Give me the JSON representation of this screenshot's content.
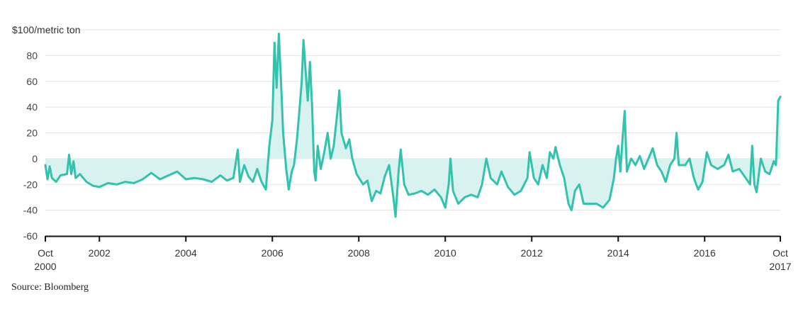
{
  "chart_data": {
    "type": "area",
    "unit_label": "$100/metric ton",
    "source": "Source: Bloomberg",
    "ylim": [
      -60,
      100
    ],
    "y_ticks": [
      {
        "value": 80,
        "label": "80"
      },
      {
        "value": 60,
        "label": "60"
      },
      {
        "value": 40,
        "label": "40"
      },
      {
        "value": 20,
        "label": "20"
      },
      {
        "value": 0,
        "label": "0"
      },
      {
        "value": -20,
        "label": "-20"
      },
      {
        "value": -40,
        "label": "-40"
      },
      {
        "value": -60,
        "label": "-60"
      }
    ],
    "xlim": [
      2000.75,
      2017.75
    ],
    "x_ticks": [
      {
        "value": 2000.75,
        "line1": "Oct",
        "line2": "2000"
      },
      {
        "value": 2002.0,
        "line1": "2002",
        "line2": ""
      },
      {
        "value": 2004.0,
        "line1": "2004",
        "line2": ""
      },
      {
        "value": 2006.0,
        "line1": "2006",
        "line2": ""
      },
      {
        "value": 2008.0,
        "line1": "2008",
        "line2": ""
      },
      {
        "value": 2010.0,
        "line1": "2010",
        "line2": ""
      },
      {
        "value": 2012.0,
        "line1": "2012",
        "line2": ""
      },
      {
        "value": 2014.0,
        "line1": "2014",
        "line2": ""
      },
      {
        "value": 2016.0,
        "line1": "2016",
        "line2": ""
      },
      {
        "value": 2017.75,
        "line1": "Oct",
        "line2": "2017"
      }
    ],
    "grid": true,
    "colors": {
      "line": "#33c2ad",
      "fill": "#d8f3ef",
      "grid": "#e3e3e3",
      "axis": "#111111"
    },
    "series": [
      {
        "points": [
          [
            2000.75,
            -5
          ],
          [
            2000.8,
            -16
          ],
          [
            2000.85,
            -6
          ],
          [
            2000.9,
            -15
          ],
          [
            2001.0,
            -18
          ],
          [
            2001.1,
            -13
          ],
          [
            2001.25,
            -12
          ],
          [
            2001.3,
            3
          ],
          [
            2001.35,
            -12
          ],
          [
            2001.4,
            -2
          ],
          [
            2001.45,
            -15
          ],
          [
            2001.55,
            -12
          ],
          [
            2001.7,
            -18
          ],
          [
            2001.85,
            -21
          ],
          [
            2002.0,
            -22
          ],
          [
            2002.2,
            -19
          ],
          [
            2002.4,
            -20
          ],
          [
            2002.6,
            -18
          ],
          [
            2002.8,
            -19
          ],
          [
            2003.0,
            -16
          ],
          [
            2003.2,
            -11
          ],
          [
            2003.4,
            -16
          ],
          [
            2003.6,
            -13
          ],
          [
            2003.8,
            -10
          ],
          [
            2004.0,
            -16
          ],
          [
            2004.2,
            -15
          ],
          [
            2004.4,
            -16
          ],
          [
            2004.6,
            -18
          ],
          [
            2004.8,
            -13
          ],
          [
            2004.95,
            -17
          ],
          [
            2005.1,
            -15
          ],
          [
            2005.2,
            7
          ],
          [
            2005.25,
            -18
          ],
          [
            2005.35,
            -5
          ],
          [
            2005.45,
            -14
          ],
          [
            2005.55,
            -18
          ],
          [
            2005.65,
            -8
          ],
          [
            2005.75,
            -18
          ],
          [
            2005.85,
            -24
          ],
          [
            2005.93,
            10
          ],
          [
            2006.0,
            30
          ],
          [
            2006.05,
            90
          ],
          [
            2006.1,
            55
          ],
          [
            2006.15,
            97
          ],
          [
            2006.2,
            60
          ],
          [
            2006.25,
            20
          ],
          [
            2006.32,
            -8
          ],
          [
            2006.38,
            -24
          ],
          [
            2006.45,
            -10
          ],
          [
            2006.5,
            -5
          ],
          [
            2006.57,
            15
          ],
          [
            2006.62,
            35
          ],
          [
            2006.68,
            60
          ],
          [
            2006.72,
            92
          ],
          [
            2006.77,
            68
          ],
          [
            2006.82,
            45
          ],
          [
            2006.87,
            75
          ],
          [
            2006.92,
            40
          ],
          [
            2006.97,
            -10
          ],
          [
            2007.0,
            -17
          ],
          [
            2007.05,
            10
          ],
          [
            2007.12,
            -8
          ],
          [
            2007.2,
            5
          ],
          [
            2007.28,
            20
          ],
          [
            2007.35,
            0
          ],
          [
            2007.42,
            10
          ],
          [
            2007.5,
            35
          ],
          [
            2007.55,
            53
          ],
          [
            2007.6,
            20
          ],
          [
            2007.7,
            8
          ],
          [
            2007.78,
            15
          ],
          [
            2007.85,
            0
          ],
          [
            2007.95,
            -12
          ],
          [
            2008.1,
            -20
          ],
          [
            2008.2,
            -17
          ],
          [
            2008.3,
            -33
          ],
          [
            2008.4,
            -25
          ],
          [
            2008.5,
            -27
          ],
          [
            2008.6,
            -14
          ],
          [
            2008.7,
            -5
          ],
          [
            2008.8,
            -30
          ],
          [
            2008.85,
            -45
          ],
          [
            2008.92,
            -10
          ],
          [
            2008.97,
            7
          ],
          [
            2009.05,
            -20
          ],
          [
            2009.15,
            -28
          ],
          [
            2009.3,
            -27
          ],
          [
            2009.45,
            -25
          ],
          [
            2009.6,
            -28
          ],
          [
            2009.75,
            -24
          ],
          [
            2009.9,
            -30
          ],
          [
            2010.0,
            -38
          ],
          [
            2010.08,
            -20
          ],
          [
            2010.12,
            0
          ],
          [
            2010.18,
            -25
          ],
          [
            2010.3,
            -35
          ],
          [
            2010.45,
            -30
          ],
          [
            2010.6,
            -28
          ],
          [
            2010.75,
            -30
          ],
          [
            2010.85,
            -20
          ],
          [
            2010.95,
            0
          ],
          [
            2011.05,
            -15
          ],
          [
            2011.2,
            -20
          ],
          [
            2011.3,
            -10
          ],
          [
            2011.45,
            -22
          ],
          [
            2011.6,
            -28
          ],
          [
            2011.75,
            -25
          ],
          [
            2011.9,
            -15
          ],
          [
            2011.95,
            5
          ],
          [
            2012.05,
            -15
          ],
          [
            2012.15,
            -20
          ],
          [
            2012.25,
            -5
          ],
          [
            2012.35,
            -15
          ],
          [
            2012.42,
            5
          ],
          [
            2012.5,
            0
          ],
          [
            2012.55,
            9
          ],
          [
            2012.65,
            -5
          ],
          [
            2012.75,
            -15
          ],
          [
            2012.85,
            -35
          ],
          [
            2012.92,
            -40
          ],
          [
            2013.0,
            -25
          ],
          [
            2013.1,
            -20
          ],
          [
            2013.2,
            -35
          ],
          [
            2013.35,
            -35
          ],
          [
            2013.5,
            -35
          ],
          [
            2013.65,
            -38
          ],
          [
            2013.8,
            -32
          ],
          [
            2013.9,
            -15
          ],
          [
            2013.95,
            0
          ],
          [
            2014.0,
            10
          ],
          [
            2014.05,
            -10
          ],
          [
            2014.1,
            15
          ],
          [
            2014.15,
            37
          ],
          [
            2014.2,
            -10
          ],
          [
            2014.3,
            0
          ],
          [
            2014.4,
            -5
          ],
          [
            2014.5,
            2
          ],
          [
            2014.6,
            -8
          ],
          [
            2014.7,
            0
          ],
          [
            2014.8,
            8
          ],
          [
            2014.9,
            -5
          ],
          [
            2015.0,
            -10
          ],
          [
            2015.1,
            -18
          ],
          [
            2015.2,
            -5
          ],
          [
            2015.3,
            0
          ],
          [
            2015.35,
            20
          ],
          [
            2015.4,
            -5
          ],
          [
            2015.55,
            -5
          ],
          [
            2015.65,
            0
          ],
          [
            2015.75,
            -15
          ],
          [
            2015.85,
            -24
          ],
          [
            2015.95,
            -18
          ],
          [
            2016.05,
            5
          ],
          [
            2016.15,
            -5
          ],
          [
            2016.3,
            -8
          ],
          [
            2016.45,
            -5
          ],
          [
            2016.55,
            3
          ],
          [
            2016.65,
            -10
          ],
          [
            2016.8,
            -8
          ],
          [
            2016.95,
            -15
          ],
          [
            2017.05,
            -20
          ],
          [
            2017.1,
            10
          ],
          [
            2017.15,
            -20
          ],
          [
            2017.2,
            -26
          ],
          [
            2017.3,
            0
          ],
          [
            2017.4,
            -10
          ],
          [
            2017.5,
            -12
          ],
          [
            2017.6,
            -2
          ],
          [
            2017.65,
            -5
          ],
          [
            2017.7,
            45
          ],
          [
            2017.75,
            48
          ]
        ]
      }
    ]
  }
}
